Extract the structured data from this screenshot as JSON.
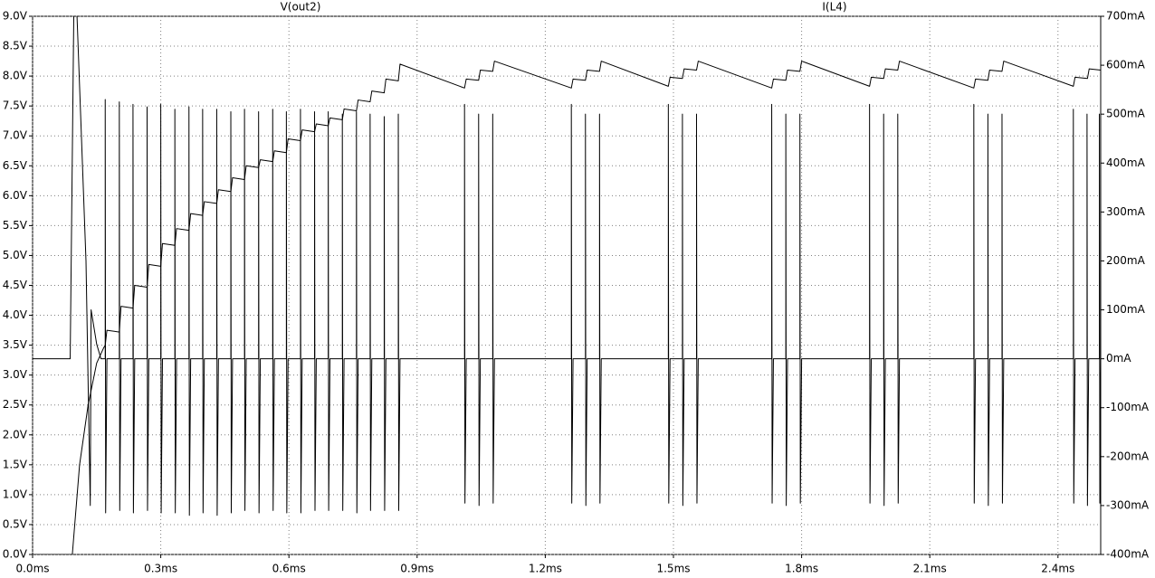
{
  "chart_data": {
    "type": "line",
    "xlim": [
      0,
      2.5
    ],
    "xticks": [
      {
        "value": 0,
        "label": "0.0ms"
      },
      {
        "value": 0.3,
        "label": "0.3ms"
      },
      {
        "value": 0.6,
        "label": "0.6ms"
      },
      {
        "value": 0.9,
        "label": "0.9ms"
      },
      {
        "value": 1.2,
        "label": "1.2ms"
      },
      {
        "value": 1.5,
        "label": "1.5ms"
      },
      {
        "value": 1.8,
        "label": "1.8ms"
      },
      {
        "value": 2.1,
        "label": "2.1ms"
      },
      {
        "value": 2.4,
        "label": "2.4ms"
      }
    ],
    "ylim": [
      0,
      9
    ],
    "yticks": [
      {
        "value": 0,
        "label": "0.0V"
      },
      {
        "value": 0.5,
        "label": "0.5V"
      },
      {
        "value": 1,
        "label": "1.0V"
      },
      {
        "value": 1.5,
        "label": "1.5V"
      },
      {
        "value": 2,
        "label": "2.0V"
      },
      {
        "value": 2.5,
        "label": "2.5V"
      },
      {
        "value": 3,
        "label": "3.0V"
      },
      {
        "value": 3.5,
        "label": "3.5V"
      },
      {
        "value": 4,
        "label": "4.0V"
      },
      {
        "value": 4.5,
        "label": "4.5V"
      },
      {
        "value": 5,
        "label": "5.0V"
      },
      {
        "value": 5.5,
        "label": "5.5V"
      },
      {
        "value": 6,
        "label": "6.0V"
      },
      {
        "value": 6.5,
        "label": "6.5V"
      },
      {
        "value": 7,
        "label": "7.0V"
      },
      {
        "value": 7.5,
        "label": "7.5V"
      },
      {
        "value": 8,
        "label": "8.0V"
      },
      {
        "value": 8.5,
        "label": "8.5V"
      },
      {
        "value": 9,
        "label": "9.0V"
      }
    ],
    "y2lim": [
      -400,
      700
    ],
    "y2ticks": [
      {
        "value": -400,
        "label": "-400mA"
      },
      {
        "value": -300,
        "label": "-300mA"
      },
      {
        "value": -200,
        "label": "-200mA"
      },
      {
        "value": -100,
        "label": "-100mA"
      },
      {
        "value": 0,
        "label": "0mA"
      },
      {
        "value": 100,
        "label": "100mA"
      },
      {
        "value": 200,
        "label": "200mA"
      },
      {
        "value": 300,
        "label": "300mA"
      },
      {
        "value": 400,
        "label": "400mA"
      },
      {
        "value": 500,
        "label": "500mA"
      },
      {
        "value": 600,
        "label": "600mA"
      },
      {
        "value": 700,
        "label": "700mA"
      }
    ],
    "grid": true,
    "series": [
      {
        "name": "V(out2)",
        "color": "#000000",
        "x": [
          0,
          0.093,
          0.11,
          0.13,
          0.15,
          0.166,
          0.17,
          0.174,
          0.203,
          0.207,
          0.235,
          0.239,
          0.268,
          0.272,
          0.3,
          0.304,
          0.333,
          0.337,
          0.366,
          0.37,
          0.398,
          0.402,
          0.431,
          0.435,
          0.464,
          0.468,
          0.496,
          0.5,
          0.529,
          0.533,
          0.562,
          0.566,
          0.594,
          0.598,
          0.627,
          0.631,
          0.66,
          0.664,
          0.692,
          0.696,
          0.725,
          0.729,
          0.758,
          0.762,
          0.79,
          0.794,
          0.823,
          0.827,
          0.856,
          0.86,
          1.011,
          1.015,
          1.044,
          1.048,
          1.077,
          1.081,
          1.261,
          1.265,
          1.294,
          1.298,
          1.327,
          1.331,
          1.488,
          1.492,
          1.521,
          1.525,
          1.554,
          1.558,
          1.73,
          1.734,
          1.763,
          1.767,
          1.796,
          1.8,
          1.959,
          1.963,
          1.992,
          1.996,
          2.025,
          2.029,
          2.203,
          2.207,
          2.236,
          2.24,
          2.269,
          2.273,
          2.436,
          2.44,
          2.469,
          2.473,
          2.5
        ],
        "values": [
          0,
          0,
          1.5,
          2.5,
          3.2,
          3.45,
          3.5,
          3.75,
          3.72,
          4.15,
          4.12,
          4.5,
          4.47,
          4.85,
          4.82,
          5.2,
          5.17,
          5.45,
          5.42,
          5.7,
          5.67,
          5.9,
          5.87,
          6.1,
          6.07,
          6.3,
          6.27,
          6.5,
          6.47,
          6.6,
          6.57,
          6.75,
          6.72,
          6.95,
          6.92,
          7.1,
          7.07,
          7.2,
          7.17,
          7.3,
          7.27,
          7.45,
          7.42,
          7.6,
          7.57,
          7.75,
          7.72,
          7.95,
          7.92,
          8.2,
          7.8,
          7.95,
          7.93,
          8.1,
          8.08,
          8.25,
          7.8,
          7.95,
          7.93,
          8.1,
          8.08,
          8.25,
          7.83,
          7.98,
          7.96,
          8.12,
          8.1,
          8.25,
          7.8,
          7.95,
          7.93,
          8.1,
          8.08,
          8.25,
          7.83,
          7.98,
          7.96,
          8.12,
          8.1,
          8.25,
          7.8,
          7.95,
          7.93,
          8.1,
          8.08,
          8.25,
          7.83,
          7.98,
          7.96,
          8.12,
          8.1
        ]
      },
      {
        "name": "I(L4)",
        "color": "#000000",
        "axis": "y2",
        "x": [
          0,
          0.088,
          0.097,
          0.104,
          0.125,
          0.135,
          0.137,
          0.15,
          0.16,
          0.17,
          0.17,
          0.171,
          0.174,
          0.203,
          0.203,
          0.204,
          0.207,
          0.235,
          0.235,
          0.236,
          0.239,
          0.268,
          0.268,
          0.269,
          0.272,
          0.3,
          0.3,
          0.301,
          0.304,
          0.333,
          0.333,
          0.334,
          0.337,
          0.366,
          0.366,
          0.367,
          0.37,
          0.398,
          0.398,
          0.399,
          0.402,
          0.431,
          0.431,
          0.432,
          0.435,
          0.464,
          0.464,
          0.465,
          0.468,
          0.496,
          0.496,
          0.497,
          0.5,
          0.529,
          0.529,
          0.53,
          0.533,
          0.562,
          0.562,
          0.563,
          0.566,
          0.594,
          0.594,
          0.595,
          0.598,
          0.627,
          0.627,
          0.628,
          0.631,
          0.66,
          0.66,
          0.661,
          0.664,
          0.692,
          0.692,
          0.693,
          0.696,
          0.725,
          0.725,
          0.726,
          0.729,
          0.758,
          0.758,
          0.759,
          0.762,
          0.79,
          0.79,
          0.791,
          0.794,
          0.823,
          0.823,
          0.824,
          0.827,
          0.856,
          0.856,
          0.857,
          0.86,
          1.011,
          1.011,
          1.012,
          1.015,
          1.044,
          1.044,
          1.045,
          1.048,
          1.077,
          1.077,
          1.078,
          1.081,
          1.261,
          1.261,
          1.262,
          1.265,
          1.294,
          1.294,
          1.295,
          1.298,
          1.327,
          1.327,
          1.328,
          1.331,
          1.488,
          1.488,
          1.489,
          1.492,
          1.521,
          1.521,
          1.522,
          1.525,
          1.554,
          1.554,
          1.555,
          1.558,
          1.73,
          1.73,
          1.731,
          1.734,
          1.763,
          1.763,
          1.764,
          1.767,
          1.796,
          1.796,
          1.797,
          1.8,
          1.959,
          1.959,
          1.96,
          1.963,
          1.992,
          1.992,
          1.993,
          1.996,
          2.025,
          2.025,
          2.026,
          2.029,
          2.203,
          2.203,
          2.204,
          2.207,
          2.236,
          2.236,
          2.237,
          2.24,
          2.269,
          2.269,
          2.27,
          2.273,
          2.436,
          2.436,
          2.437,
          2.44,
          2.468,
          2.468,
          2.469,
          2.472,
          2.497,
          2.497,
          2.498,
          2.5
        ],
        "values": [
          0,
          0,
          750,
          700,
          200,
          -300,
          100,
          30,
          0,
          0,
          530,
          -315,
          0,
          0,
          525,
          -310,
          0,
          0,
          520,
          -315,
          0,
          0,
          515,
          -310,
          0,
          0,
          520,
          -315,
          0,
          0,
          510,
          -315,
          0,
          0,
          515,
          -320,
          0,
          0,
          510,
          -315,
          0,
          0,
          510,
          -320,
          0,
          0,
          505,
          -315,
          0,
          0,
          510,
          -310,
          0,
          0,
          505,
          -315,
          0,
          0,
          510,
          -310,
          0,
          0,
          505,
          -315,
          0,
          0,
          510,
          -315,
          0,
          0,
          505,
          -310,
          0,
          0,
          505,
          -310,
          0,
          0,
          500,
          -310,
          0,
          0,
          505,
          -315,
          0,
          0,
          500,
          -310,
          0,
          0,
          495,
          -310,
          0,
          0,
          500,
          -310,
          0,
          0,
          520,
          -295,
          0,
          0,
          500,
          -300,
          0,
          0,
          500,
          -295,
          0,
          0,
          520,
          -295,
          0,
          0,
          500,
          -300,
          0,
          0,
          500,
          -295,
          0,
          0,
          520,
          -295,
          0,
          0,
          500,
          -300,
          0,
          0,
          500,
          -295,
          0,
          0,
          520,
          -295,
          0,
          0,
          500,
          -300,
          0,
          0,
          500,
          -295,
          0,
          0,
          520,
          -295,
          0,
          0,
          500,
          -300,
          0,
          0,
          500,
          -295,
          0,
          0,
          520,
          -295,
          0,
          0,
          500,
          -300,
          0,
          0,
          500,
          -295,
          0,
          0,
          510,
          -295,
          0,
          0,
          500,
          -300,
          0,
          0,
          500,
          -295,
          0
        ]
      }
    ]
  }
}
